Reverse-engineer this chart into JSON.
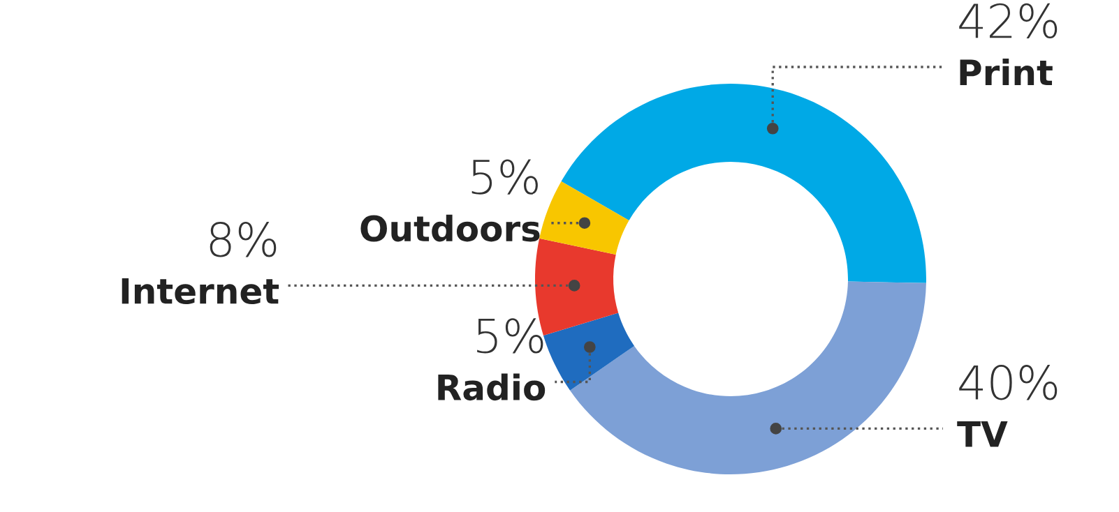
{
  "chart_data": {
    "type": "donut",
    "categories": [
      "Print",
      "TV",
      "Radio",
      "Internet",
      "Outdoors"
    ],
    "values": [
      42,
      40,
      5,
      8,
      5
    ],
    "value_labels": [
      "42%",
      "40%",
      "5%",
      "8%",
      "5%"
    ],
    "colors": [
      "#00a9e6",
      "#7da0d6",
      "#1f6cbf",
      "#e8392d",
      "#f8c600"
    ],
    "legend": false
  }
}
